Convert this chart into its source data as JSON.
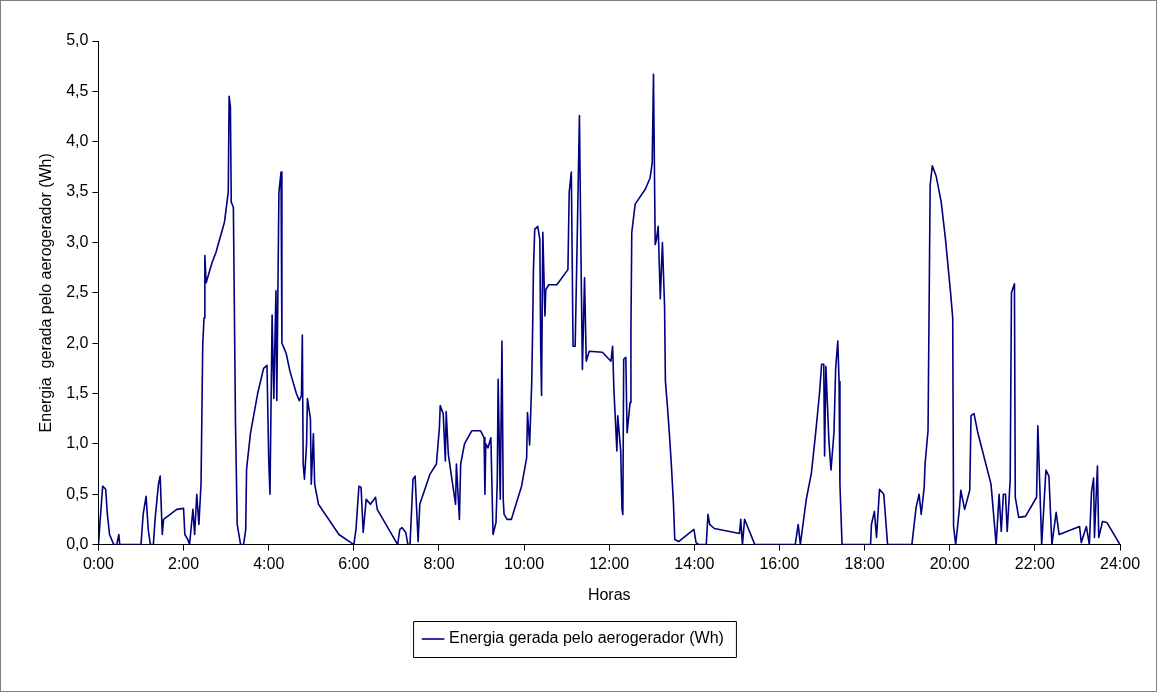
{
  "chart_data": {
    "type": "line",
    "xlabel": "Horas",
    "ylabel": "Energia  gerada pelo aerogerador (Wh)",
    "legend": "bottom",
    "grid": false,
    "marker": "none",
    "line_style": "solid",
    "xlim": [
      0,
      24
    ],
    "xticks": [
      {
        "value": 0,
        "label": "0:00"
      },
      {
        "value": 2,
        "label": "2:00"
      },
      {
        "value": 4,
        "label": "4:00"
      },
      {
        "value": 6,
        "label": "6:00"
      },
      {
        "value": 8,
        "label": "8:00"
      },
      {
        "value": 10,
        "label": "10:00"
      },
      {
        "value": 12,
        "label": "12:00"
      },
      {
        "value": 14,
        "label": "14:00"
      },
      {
        "value": 16,
        "label": "16:00"
      },
      {
        "value": 18,
        "label": "18:00"
      },
      {
        "value": 20,
        "label": "20:00"
      },
      {
        "value": 22,
        "label": "22:00"
      },
      {
        "value": 24,
        "label": "24:00"
      }
    ],
    "ylim": [
      0,
      5
    ],
    "yticks": [
      {
        "value": 0,
        "label": "0,0"
      },
      {
        "value": 0.5,
        "label": "0,5"
      },
      {
        "value": 1,
        "label": "1,0"
      },
      {
        "value": 1.5,
        "label": "1,5"
      },
      {
        "value": 2,
        "label": "2,0"
      },
      {
        "value": 2.5,
        "label": "2,5"
      },
      {
        "value": 3,
        "label": "3,0"
      },
      {
        "value": 3.5,
        "label": "3,5"
      },
      {
        "value": 4,
        "label": "4,0"
      },
      {
        "value": 4.5,
        "label": "4,5"
      },
      {
        "value": 5,
        "label": "5,0"
      }
    ],
    "series": [
      {
        "name": "Energia gerada pelo aerogerador (Wh)",
        "color": "#000080",
        "x": [
          0,
          0.05,
          0.1,
          0.17,
          0.21,
          0.26,
          0.36,
          0.43,
          0.48,
          0.5,
          1.0,
          1.05,
          1.12,
          1.17,
          1.22,
          1.29,
          1.33,
          1.41,
          1.45,
          1.5,
          1.53,
          1.84,
          2.0,
          2.03,
          2.1,
          2.14,
          2.22,
          2.26,
          2.31,
          2.36,
          2.41,
          2.45,
          2.48,
          2.5,
          2.53,
          2.67,
          2.76,
          2.96,
          3.05,
          3.07,
          3.1,
          3.12,
          3.17,
          3.19,
          3.22,
          3.26,
          3.34,
          3.41,
          3.46,
          3.48,
          3.57,
          3.74,
          3.88,
          3.96,
          4.0,
          4.03,
          4.08,
          4.12,
          4.17,
          4.19,
          4.24,
          4.29,
          4.31,
          4.41,
          4.5,
          4.65,
          4.72,
          4.77,
          4.79,
          4.81,
          4.84,
          4.89,
          4.91,
          4.98,
          5.0,
          5.05,
          5.08,
          5.17,
          5.65,
          6.0,
          6.05,
          6.12,
          6.17,
          6.22,
          6.29,
          6.39,
          6.51,
          6.55,
          7.03,
          7.08,
          7.13,
          7.22,
          7.27,
          7.32,
          7.39,
          7.44,
          7.51,
          7.55,
          7.79,
          7.94,
          8.01,
          8.03,
          8.1,
          8.15,
          8.17,
          8.22,
          8.27,
          8.39,
          8.41,
          8.48,
          8.51,
          8.6,
          8.77,
          8.98,
          9.06,
          9.08,
          9.1,
          9.15,
          9.22,
          9.27,
          9.34,
          9.37,
          9.39,
          9.44,
          9.48,
          9.51,
          9.53,
          9.6,
          9.7,
          9.94,
          10.06,
          10.08,
          10.13,
          10.18,
          10.2,
          10.22,
          10.25,
          10.32,
          10.37,
          10.39,
          10.41,
          10.44,
          10.49,
          10.51,
          10.58,
          10.77,
          11.03,
          11.06,
          11.11,
          11.15,
          11.2,
          11.25,
          11.3,
          11.34,
          11.37,
          11.42,
          11.46,
          11.53,
          11.84,
          12.04,
          12.08,
          12.11,
          12.18,
          12.2,
          12.27,
          12.3,
          12.32,
          12.34,
          12.39,
          12.42,
          12.49,
          12.51,
          12.53,
          12.61,
          12.85,
          12.96,
          13.01,
          13.04,
          13.08,
          13.11,
          13.15,
          13.2,
          13.25,
          13.3,
          13.32,
          13.37,
          13.42,
          13.46,
          13.51,
          13.54,
          13.63,
          13.99,
          14.04,
          14.11,
          14.28,
          14.32,
          14.36,
          14.47,
          15.06,
          15.09,
          15.13,
          15.18,
          15.23,
          15.42,
          16.37,
          16.44,
          16.49,
          16.63,
          16.75,
          16.85,
          16.94,
          16.99,
          17.04,
          17.06,
          17.09,
          17.16,
          17.21,
          17.28,
          17.32,
          17.37,
          17.4,
          17.42,
          17.47,
          18.14,
          18.16,
          18.23,
          18.28,
          18.35,
          18.45,
          18.54,
          19.11,
          19.21,
          19.28,
          19.33,
          19.4,
          19.42,
          19.49,
          19.54,
          19.59,
          19.68,
          19.8,
          19.9,
          20.02,
          20.07,
          20.09,
          20.14,
          20.23,
          20.26,
          20.35,
          20.47,
          20.5,
          20.57,
          20.66,
          20.97,
          21.09,
          21.16,
          21.21,
          21.26,
          21.31,
          21.35,
          21.42,
          21.45,
          21.52,
          21.54,
          21.62,
          21.78,
          22.04,
          22.07,
          22.16,
          22.26,
          22.33,
          22.4,
          22.5,
          22.57,
          23.05,
          23.09,
          23.21,
          23.28,
          23.33,
          23.38,
          23.4,
          23.47,
          23.5,
          23.59,
          23.69,
          24.0
        ],
        "values": [
          0,
          0.3,
          0.58,
          0.55,
          0.3,
          0.1,
          0,
          0,
          0.1,
          0,
          0,
          0.3,
          0.48,
          0.15,
          0,
          0,
          0.25,
          0.6,
          0.68,
          0.1,
          0.25,
          0.35,
          0.36,
          0.1,
          0.05,
          0,
          0.35,
          0.1,
          0.5,
          0.2,
          0.6,
          1.98,
          2.25,
          2.87,
          2.6,
          2.8,
          2.9,
          3.2,
          3.5,
          4.45,
          4.35,
          3.4,
          3.35,
          2.5,
          1.2,
          0.2,
          0,
          0,
          0.15,
          0.75,
          1.1,
          1.5,
          1.75,
          1.78,
          0.85,
          0.5,
          2.28,
          1.45,
          2.52,
          1.43,
          3.5,
          3.7,
          2.0,
          1.9,
          1.72,
          1.5,
          1.43,
          1.48,
          2.08,
          0.8,
          0.65,
          1.0,
          1.45,
          1.25,
          0.6,
          1.1,
          0.6,
          0.4,
          0.1,
          0,
          0.15,
          0.58,
          0.57,
          0.12,
          0.45,
          0.4,
          0.47,
          0.35,
          0,
          0.15,
          0.17,
          0.12,
          0,
          0,
          0.65,
          0.68,
          0.03,
          0.4,
          0.7,
          0.8,
          1.16,
          1.38,
          1.3,
          0.83,
          1.32,
          0.9,
          0.75,
          0.4,
          0.8,
          0.25,
          0.8,
          1.0,
          1.13,
          1.13,
          1.06,
          0.5,
          1.0,
          0.96,
          1.06,
          0.1,
          0.22,
          0.63,
          1.64,
          0.45,
          2.02,
          0.45,
          0.3,
          0.25,
          0.25,
          0.58,
          0.86,
          1.31,
          0.99,
          1.62,
          2.12,
          2.73,
          3.13,
          3.16,
          3.03,
          1.97,
          1.48,
          3.1,
          2.27,
          2.53,
          2.58,
          2.58,
          2.73,
          3.5,
          3.7,
          1.97,
          1.97,
          3.08,
          4.26,
          2.75,
          1.74,
          2.65,
          1.82,
          1.92,
          1.91,
          1.82,
          1.97,
          1.54,
          0.93,
          1.28,
          0.93,
          0.35,
          0.3,
          1.84,
          1.86,
          1.11,
          1.41,
          2.12,
          3.1,
          3.38,
          3.53,
          3.64,
          3.79,
          4.67,
          2.98,
          3.03,
          3.16,
          2.44,
          3.0,
          2.37,
          1.62,
          1.36,
          1.06,
          0.79,
          0.4,
          0.05,
          0.03,
          0.15,
          0.02,
          0,
          0,
          0.3,
          0.2,
          0.16,
          0.11,
          0.25,
          0,
          0.25,
          0.2,
          0,
          0,
          0.2,
          0,
          0.45,
          0.71,
          1.11,
          1.5,
          1.79,
          1.79,
          0.88,
          1.77,
          1.04,
          0.74,
          1.11,
          1.75,
          2.02,
          1.62,
          0.6,
          0,
          0,
          0.2,
          0.33,
          0.07,
          0.55,
          0.5,
          0,
          0,
          0.37,
          0.5,
          0.3,
          0.57,
          0.8,
          1.13,
          3.57,
          3.76,
          3.66,
          3.4,
          3.03,
          2.5,
          2.25,
          0.18,
          0,
          0.37,
          0.54,
          0.35,
          0.54,
          1.28,
          1.3,
          1.11,
          0.6,
          0,
          0.5,
          0.13,
          0.5,
          0.5,
          0.13,
          0.64,
          2.5,
          2.59,
          0.47,
          0.27,
          0.28,
          0.47,
          1.18,
          0,
          0.74,
          0.68,
          0,
          0.32,
          0.1,
          0.18,
          0.02,
          0.18,
          0,
          0.52,
          0.66,
          0.07,
          0.78,
          0.07,
          0.23,
          0.22,
          0
        ]
      }
    ]
  }
}
